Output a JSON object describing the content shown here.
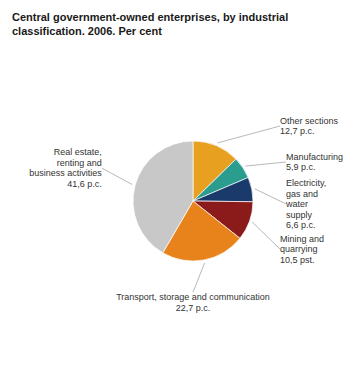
{
  "chart_data": {
    "type": "pie",
    "title": "Central government-owned enterprises, by industrial\nclassification. 2006. Per cent",
    "categories": [
      "Other sections",
      "Manufacturing",
      "Electricity,\ngas and\nwater\nsupply",
      "Mining and\nquarrying",
      "Transport, storage and communication",
      "Real estate,\nrenting and\nbusiness activities"
    ],
    "values": [
      12.7,
      5.9,
      6.6,
      10.5,
      22.7,
      41.6
    ],
    "value_labels": [
      "12,7 p.c.",
      "5,9 p.c.",
      "6,6 p.c.",
      "10,5 pst.",
      "22,7 p.c.",
      "41,6 p.c."
    ],
    "colors": [
      "#E8A020",
      "#2A9D8F",
      "#1A3A6B",
      "#8B1A1A",
      "#E8821A",
      "#C8C8C8"
    ],
    "data_labels": true
  }
}
